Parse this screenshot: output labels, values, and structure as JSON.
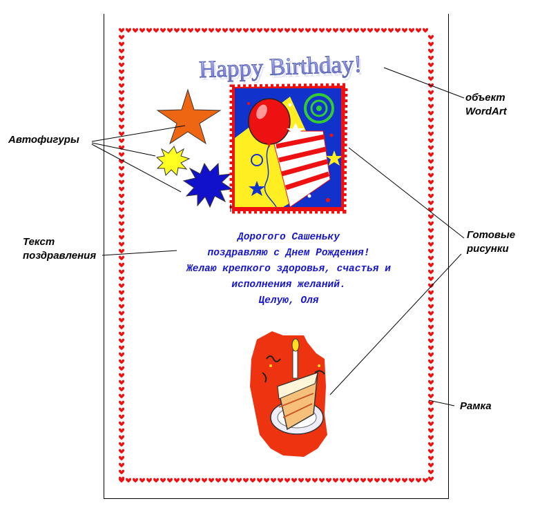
{
  "wordart": {
    "text": "Happy Birthday!"
  },
  "greeting": {
    "lines": [
      "Дорогого Сашеньку",
      "поздравляю с Днем Рождения!",
      "Желаю крепкого здоровья, счастья и",
      "исполнения желаний.",
      "Целую,  Оля"
    ],
    "color": "#1515cc"
  },
  "callouts": {
    "wordart_line1": "объект",
    "wordart_line2": "WordArt",
    "autoshapes": "Автофигуры",
    "text_line1": "Текст",
    "text_line2": "поздравления",
    "clipart_line1": "Готовые",
    "clipart_line2": "рисунки",
    "border": "Рамка"
  },
  "colors": {
    "border_hearts": "#ee1111",
    "star": "#ee6611",
    "burst_yellow": "#ffff22",
    "burst_blue": "#1111cc"
  },
  "icons": [
    "heart-border",
    "star-shape",
    "explosion-shape",
    "balloon-clipart",
    "cake-clipart"
  ]
}
